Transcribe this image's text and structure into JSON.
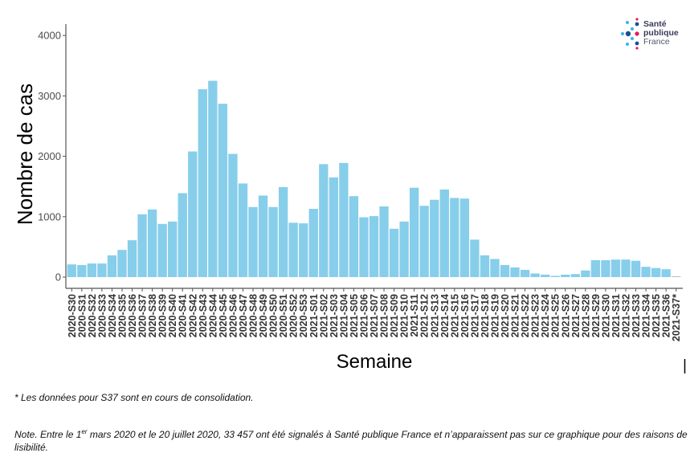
{
  "chart_data": {
    "type": "bar",
    "title": "",
    "xlabel": "Semaine",
    "ylabel": "Nombre de cas",
    "ylim": [
      0,
      4200
    ],
    "yticks": [
      0,
      1000,
      2000,
      3000,
      4000
    ],
    "ytick_labels": [
      "0",
      "1000",
      "2000",
      "3000",
      "4000"
    ],
    "bar_color": "#87CEEB",
    "partial_bar_color": "#BEBEBE",
    "grid": false,
    "categories": [
      "2020-S30",
      "2020-S31",
      "2020-S32",
      "2020-S33",
      "2020-S34",
      "2020-S35",
      "2020-S36",
      "2020-S37",
      "2020-S38",
      "2020-S39",
      "2020-S40",
      "2020-S41",
      "2020-S42",
      "2020-S43",
      "2020-S44",
      "2020-S45",
      "2020-S46",
      "2020-S47",
      "2020-S48",
      "2020-S49",
      "2020-S50",
      "2020-S51",
      "2020-S52",
      "2020-S53",
      "2021-S01",
      "2021-S02",
      "2021-S03",
      "2021-S04",
      "2021-S05",
      "2021-S06",
      "2021-S07",
      "2021-S08",
      "2021-S09",
      "2021-S10",
      "2021-S11",
      "2021-S12",
      "2021-S13",
      "2021-S14",
      "2021-S15",
      "2021-S16",
      "2021-S17",
      "2021-S18",
      "2021-S19",
      "2021-S20",
      "2021-S21",
      "2021-S22",
      "2021-S23",
      "2021-S24",
      "2021-S25",
      "2021-S26",
      "2021-S27",
      "2021-S28",
      "2021-S29",
      "2021-S30",
      "2021-S31",
      "2021-S32",
      "2021-S33",
      "2021-S34",
      "2021-S35",
      "2021-S36",
      "2021-S37*"
    ],
    "values": [
      210,
      200,
      225,
      225,
      360,
      450,
      610,
      1040,
      1120,
      880,
      920,
      1390,
      2080,
      3110,
      3250,
      2870,
      2040,
      1550,
      1160,
      1350,
      1160,
      1490,
      900,
      890,
      1130,
      1870,
      1650,
      1890,
      1340,
      990,
      1010,
      1170,
      800,
      920,
      1480,
      1180,
      1280,
      1450,
      1310,
      1300,
      620,
      360,
      300,
      200,
      160,
      120,
      60,
      40,
      20,
      40,
      50,
      110,
      280,
      280,
      290,
      290,
      270,
      170,
      150,
      130,
      10
    ]
  },
  "logo": {
    "line1": "Santé",
    "line2": "publique",
    "line3": "France"
  },
  "notes": {
    "note1": "* Les données pour S37 sont en cours de consolidation.",
    "note2_pre": "Note. Entre le 1",
    "note2_sup": "er",
    "note2_post": " mars 2020 et le 20 juillet 2020, 33 457 ont été signalés à Santé publique France et n’apparaissent pas sur ce graphique pour des raisons de lisibilité."
  }
}
